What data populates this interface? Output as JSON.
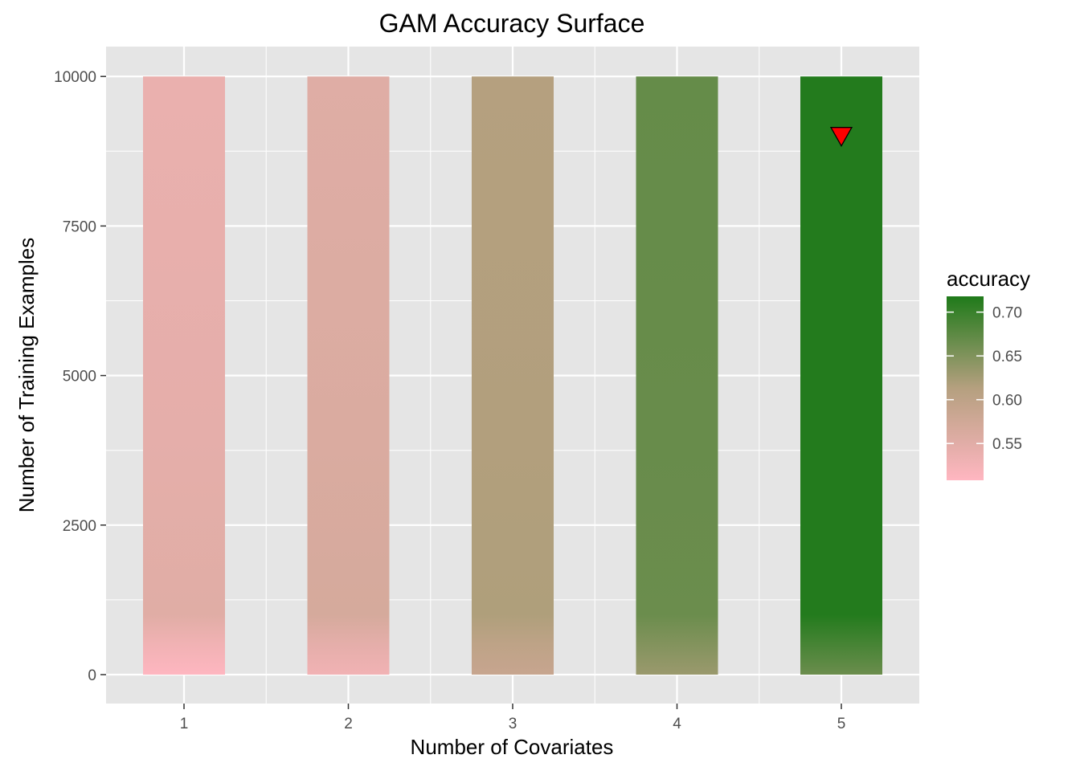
{
  "chart_data": {
    "type": "heatmap",
    "title": "GAM Accuracy Surface",
    "xlabel": "Number of Covariates",
    "ylabel": "Number of Training Examples",
    "x_categories": [
      1,
      2,
      3,
      4,
      5
    ],
    "x_ticks": [
      "1",
      "2",
      "3",
      "4",
      "5"
    ],
    "y_ticks": [
      0,
      2500,
      5000,
      7500,
      10000
    ],
    "y_tick_labels": [
      "0",
      "2500",
      "5000",
      "7500",
      "10000"
    ],
    "ylim": [
      -500,
      10500
    ],
    "grid": true,
    "series": [
      {
        "x": 1,
        "profile": [
          {
            "y": 0,
            "accuracy": 0.51
          },
          {
            "y": 500,
            "accuracy": 0.528
          },
          {
            "y": 1000,
            "accuracy": 0.552
          },
          {
            "y": 4000,
            "accuracy": 0.545
          },
          {
            "y": 10000,
            "accuracy": 0.538
          }
        ]
      },
      {
        "x": 2,
        "profile": [
          {
            "y": 0,
            "accuracy": 0.528
          },
          {
            "y": 500,
            "accuracy": 0.545
          },
          {
            "y": 1000,
            "accuracy": 0.567
          },
          {
            "y": 4000,
            "accuracy": 0.56
          },
          {
            "y": 10000,
            "accuracy": 0.553
          }
        ]
      },
      {
        "x": 3,
        "profile": [
          {
            "y": 0,
            "accuracy": 0.588
          },
          {
            "y": 500,
            "accuracy": 0.6
          },
          {
            "y": 1000,
            "accuracy": 0.617
          },
          {
            "y": 4000,
            "accuracy": 0.615
          },
          {
            "y": 10000,
            "accuracy": 0.613
          }
        ]
      },
      {
        "x": 4,
        "profile": [
          {
            "y": 0,
            "accuracy": 0.632
          },
          {
            "y": 500,
            "accuracy": 0.648
          },
          {
            "y": 1000,
            "accuracy": 0.665
          },
          {
            "y": 4000,
            "accuracy": 0.667
          },
          {
            "y": 10000,
            "accuracy": 0.669
          }
        ]
      },
      {
        "x": 5,
        "profile": [
          {
            "y": 0,
            "accuracy": 0.665
          },
          {
            "y": 500,
            "accuracy": 0.69
          },
          {
            "y": 1000,
            "accuracy": 0.715
          },
          {
            "y": 4000,
            "accuracy": 0.715
          },
          {
            "y": 10000,
            "accuracy": 0.715
          }
        ]
      }
    ],
    "marker": {
      "x": 5,
      "y": 9000,
      "shape": "triangle-down",
      "color": "#ff0000"
    },
    "legend": {
      "title": "accuracy",
      "position": "right",
      "min": 0.508,
      "max": 0.718,
      "breaks": [
        0.55,
        0.6,
        0.65,
        0.7
      ],
      "break_labels": [
        "0.55",
        "0.60",
        "0.65",
        "0.70"
      ],
      "low_color": "#ffb6c1",
      "mid_color": "#b5a07f",
      "high_color": "#1f7a1a"
    },
    "colors": {
      "panel_background": "#e5e5e5",
      "grid": "#ffffff",
      "tick_text": "#4d4d4d"
    }
  }
}
